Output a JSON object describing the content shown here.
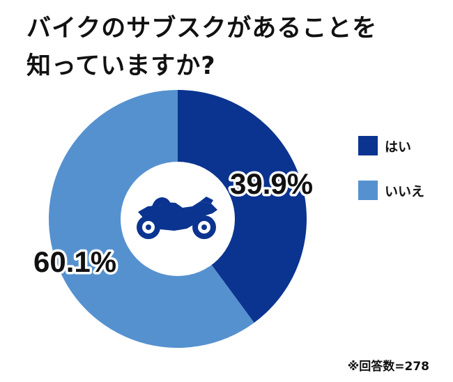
{
  "title": {
    "line1": "バイクのサブスクがあることを",
    "line2": "知っていますか?"
  },
  "chart_data": {
    "type": "pie",
    "title": "バイクのサブスクがあることを知っていますか?",
    "categories": [
      "はい",
      "いいえ"
    ],
    "values": [
      39.9,
      60.1
    ],
    "labels": [
      "39.9%",
      "60.1%"
    ],
    "colors": [
      "#0b3490",
      "#5591cf"
    ],
    "style": "donut",
    "legend": "right"
  },
  "center_icon": "motorcycle-icon",
  "note": "※回答数=278"
}
